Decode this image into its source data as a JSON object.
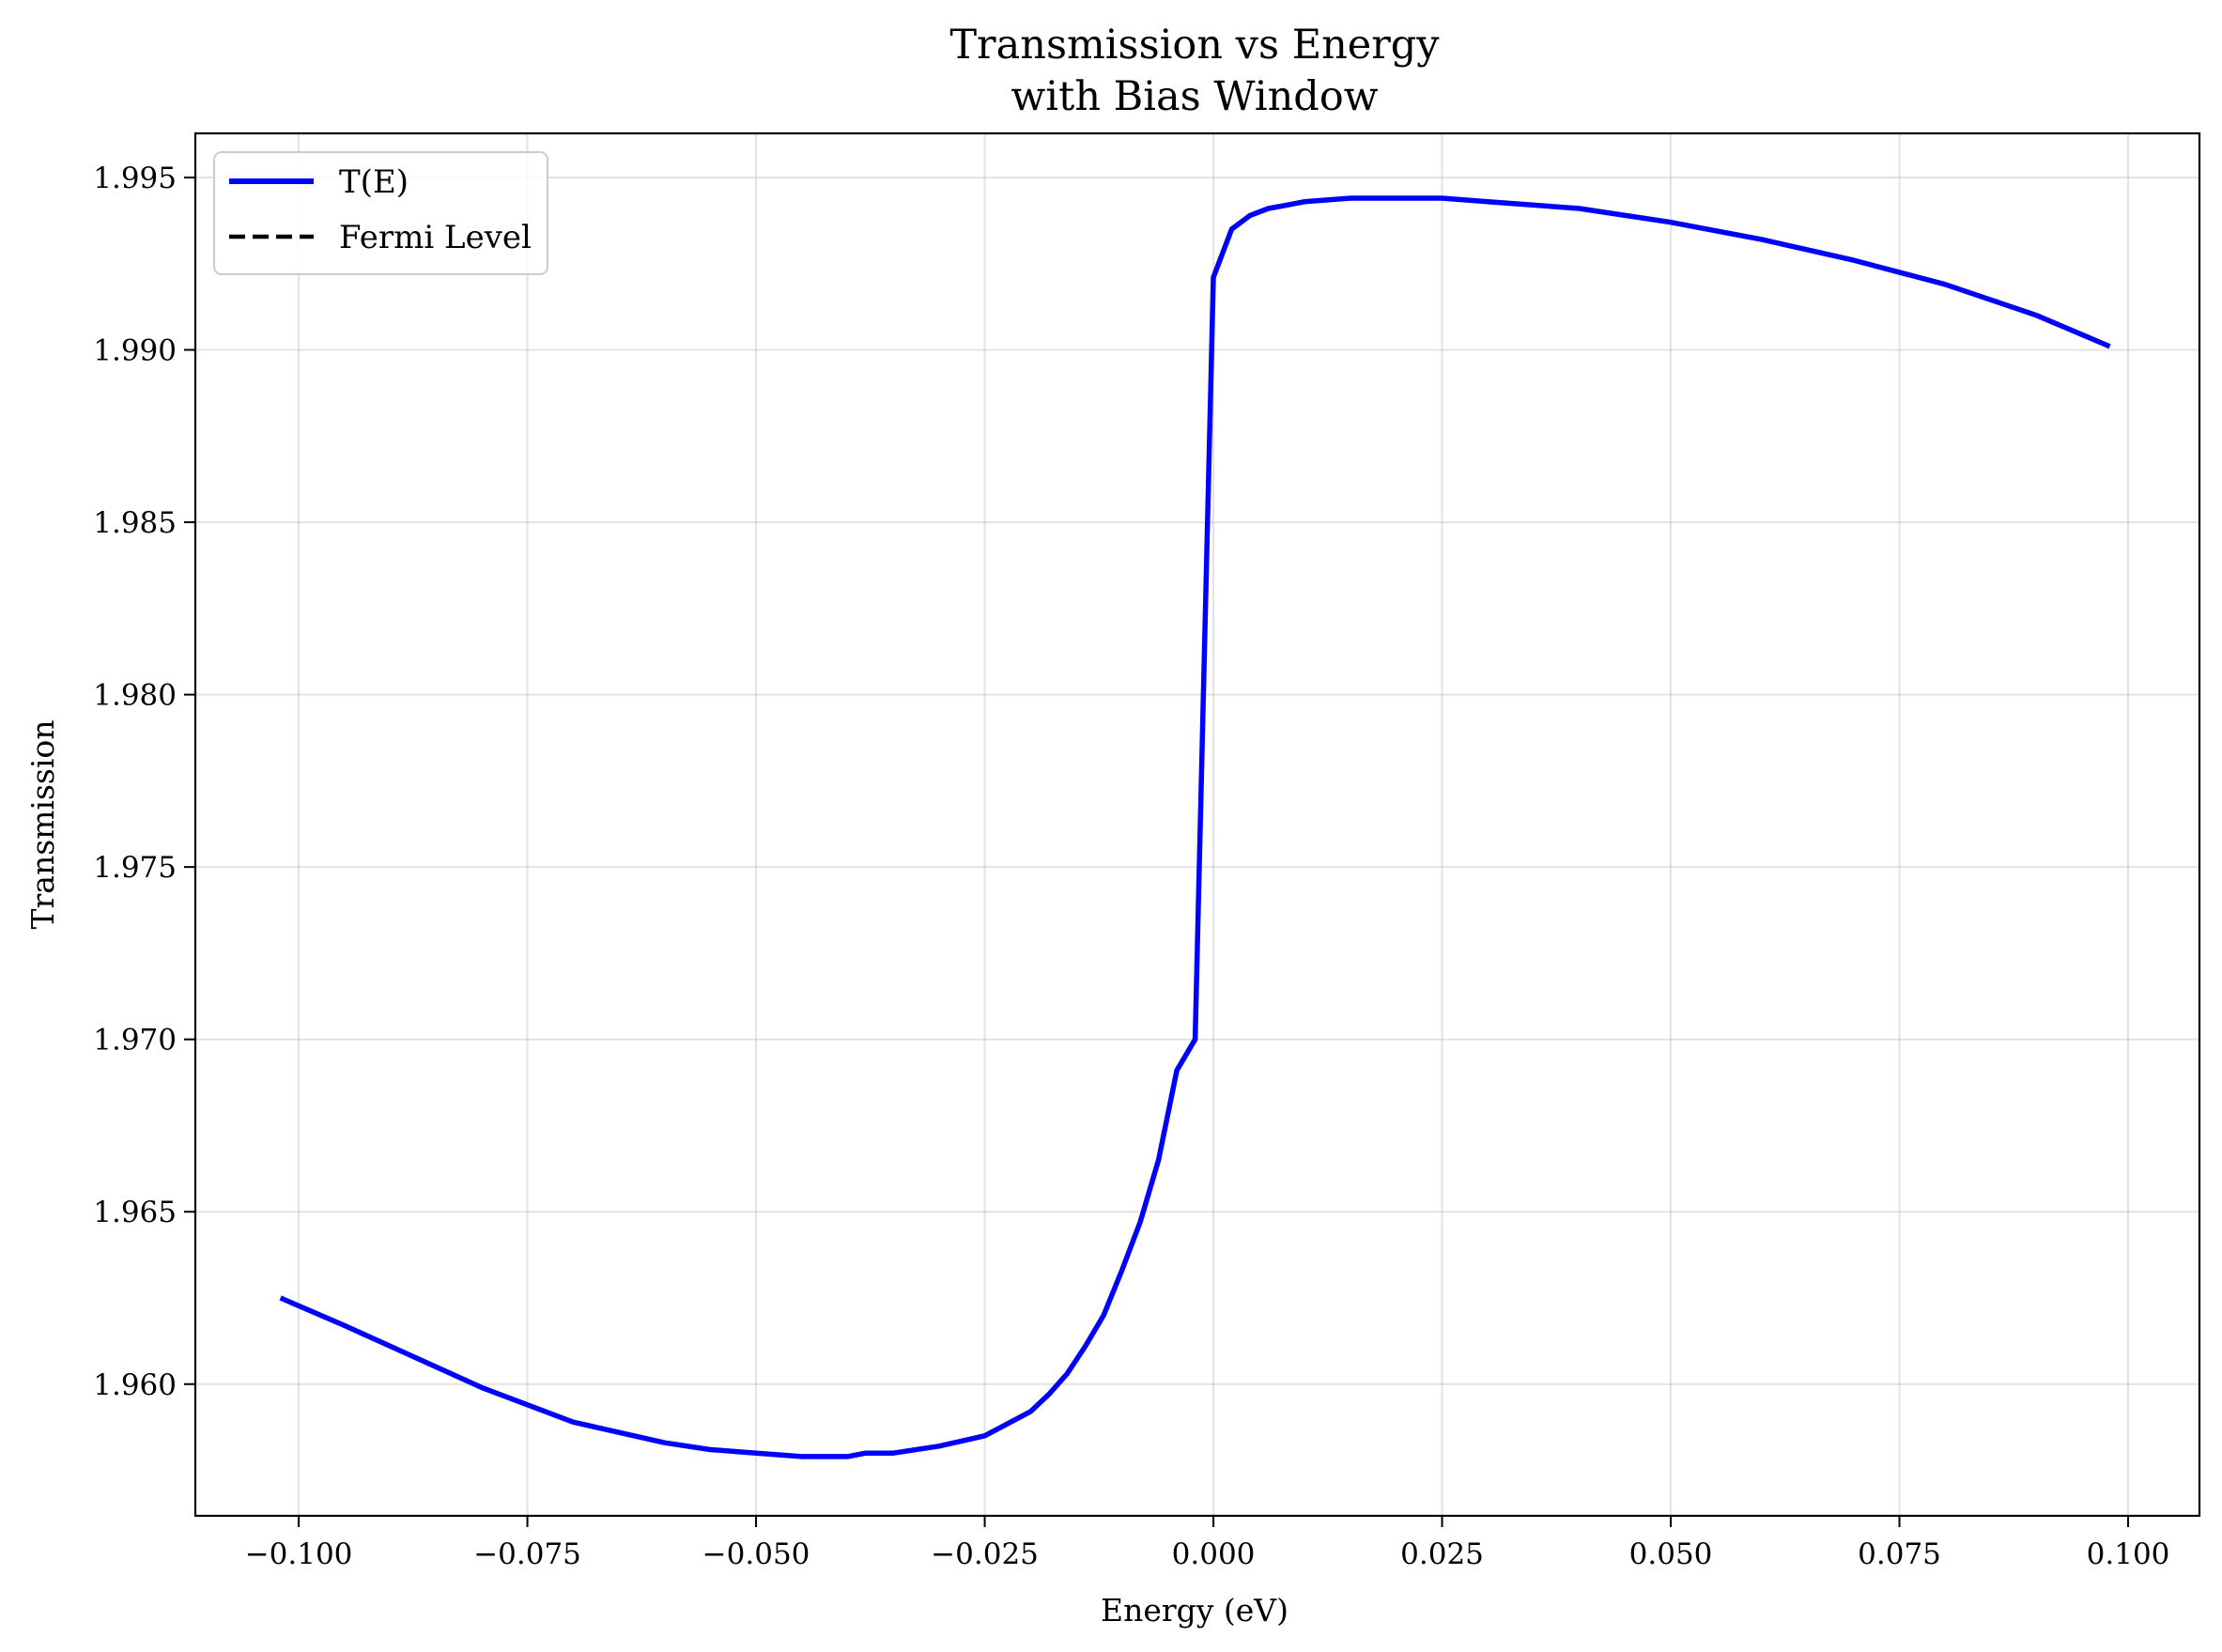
{
  "chart_data": {
    "type": "line",
    "title": "Transmission vs Energy",
    "subtitle": "with Bias Window",
    "xlabel": "Energy (eV)",
    "ylabel": "Transmission",
    "xlim": [
      -0.1113,
      0.1078
    ],
    "ylim": [
      1.95618,
      1.99628
    ],
    "xticks": [
      -0.1,
      -0.075,
      -0.05,
      -0.025,
      0.0,
      0.025,
      0.05,
      0.075,
      0.1
    ],
    "xtick_labels": [
      "−0.100",
      "−0.075",
      "−0.050",
      "−0.025",
      "0.000",
      "0.025",
      "0.050",
      "0.075",
      "0.100"
    ],
    "yticks": [
      1.96,
      1.965,
      1.97,
      1.975,
      1.98,
      1.985,
      1.99,
      1.995
    ],
    "ytick_labels": [
      "1.960",
      "1.965",
      "1.970",
      "1.975",
      "1.980",
      "1.985",
      "1.990",
      "1.995"
    ],
    "grid": true,
    "legend_position": "top-left",
    "series": [
      {
        "name": "T(E)",
        "color": "#0000ff",
        "style": "solid",
        "x": [
          -0.102,
          -0.095,
          -0.09,
          -0.085,
          -0.08,
          -0.075,
          -0.07,
          -0.065,
          -0.06,
          -0.055,
          -0.05,
          -0.045,
          -0.04,
          -0.038,
          -0.035,
          -0.03,
          -0.025,
          -0.02,
          -0.018,
          -0.016,
          -0.014,
          -0.012,
          -0.01,
          -0.008,
          -0.006,
          -0.004,
          -0.002,
          0.0,
          0.002,
          0.004,
          0.006,
          0.008,
          0.01,
          0.015,
          0.02,
          0.025,
          0.03,
          0.04,
          0.05,
          0.06,
          0.07,
          0.08,
          0.09,
          0.098
        ],
        "y": [
          1.9625,
          1.9617,
          1.9611,
          1.9605,
          1.9599,
          1.9594,
          1.9589,
          1.9586,
          1.9583,
          1.9581,
          1.958,
          1.9579,
          1.9579,
          1.958,
          1.958,
          1.9582,
          1.9585,
          1.9592,
          1.9597,
          1.9603,
          1.9611,
          1.962,
          1.9633,
          1.9647,
          1.9665,
          1.9691,
          1.97,
          1.9921,
          1.9935,
          1.9939,
          1.9941,
          1.9942,
          1.9943,
          1.9944,
          1.9944,
          1.9944,
          1.9943,
          1.9941,
          1.9937,
          1.9932,
          1.9926,
          1.9919,
          1.991,
          1.9901
        ]
      },
      {
        "name": "Fermi Level",
        "color": "#000000",
        "style": "dashed",
        "x": [],
        "y": []
      }
    ]
  }
}
